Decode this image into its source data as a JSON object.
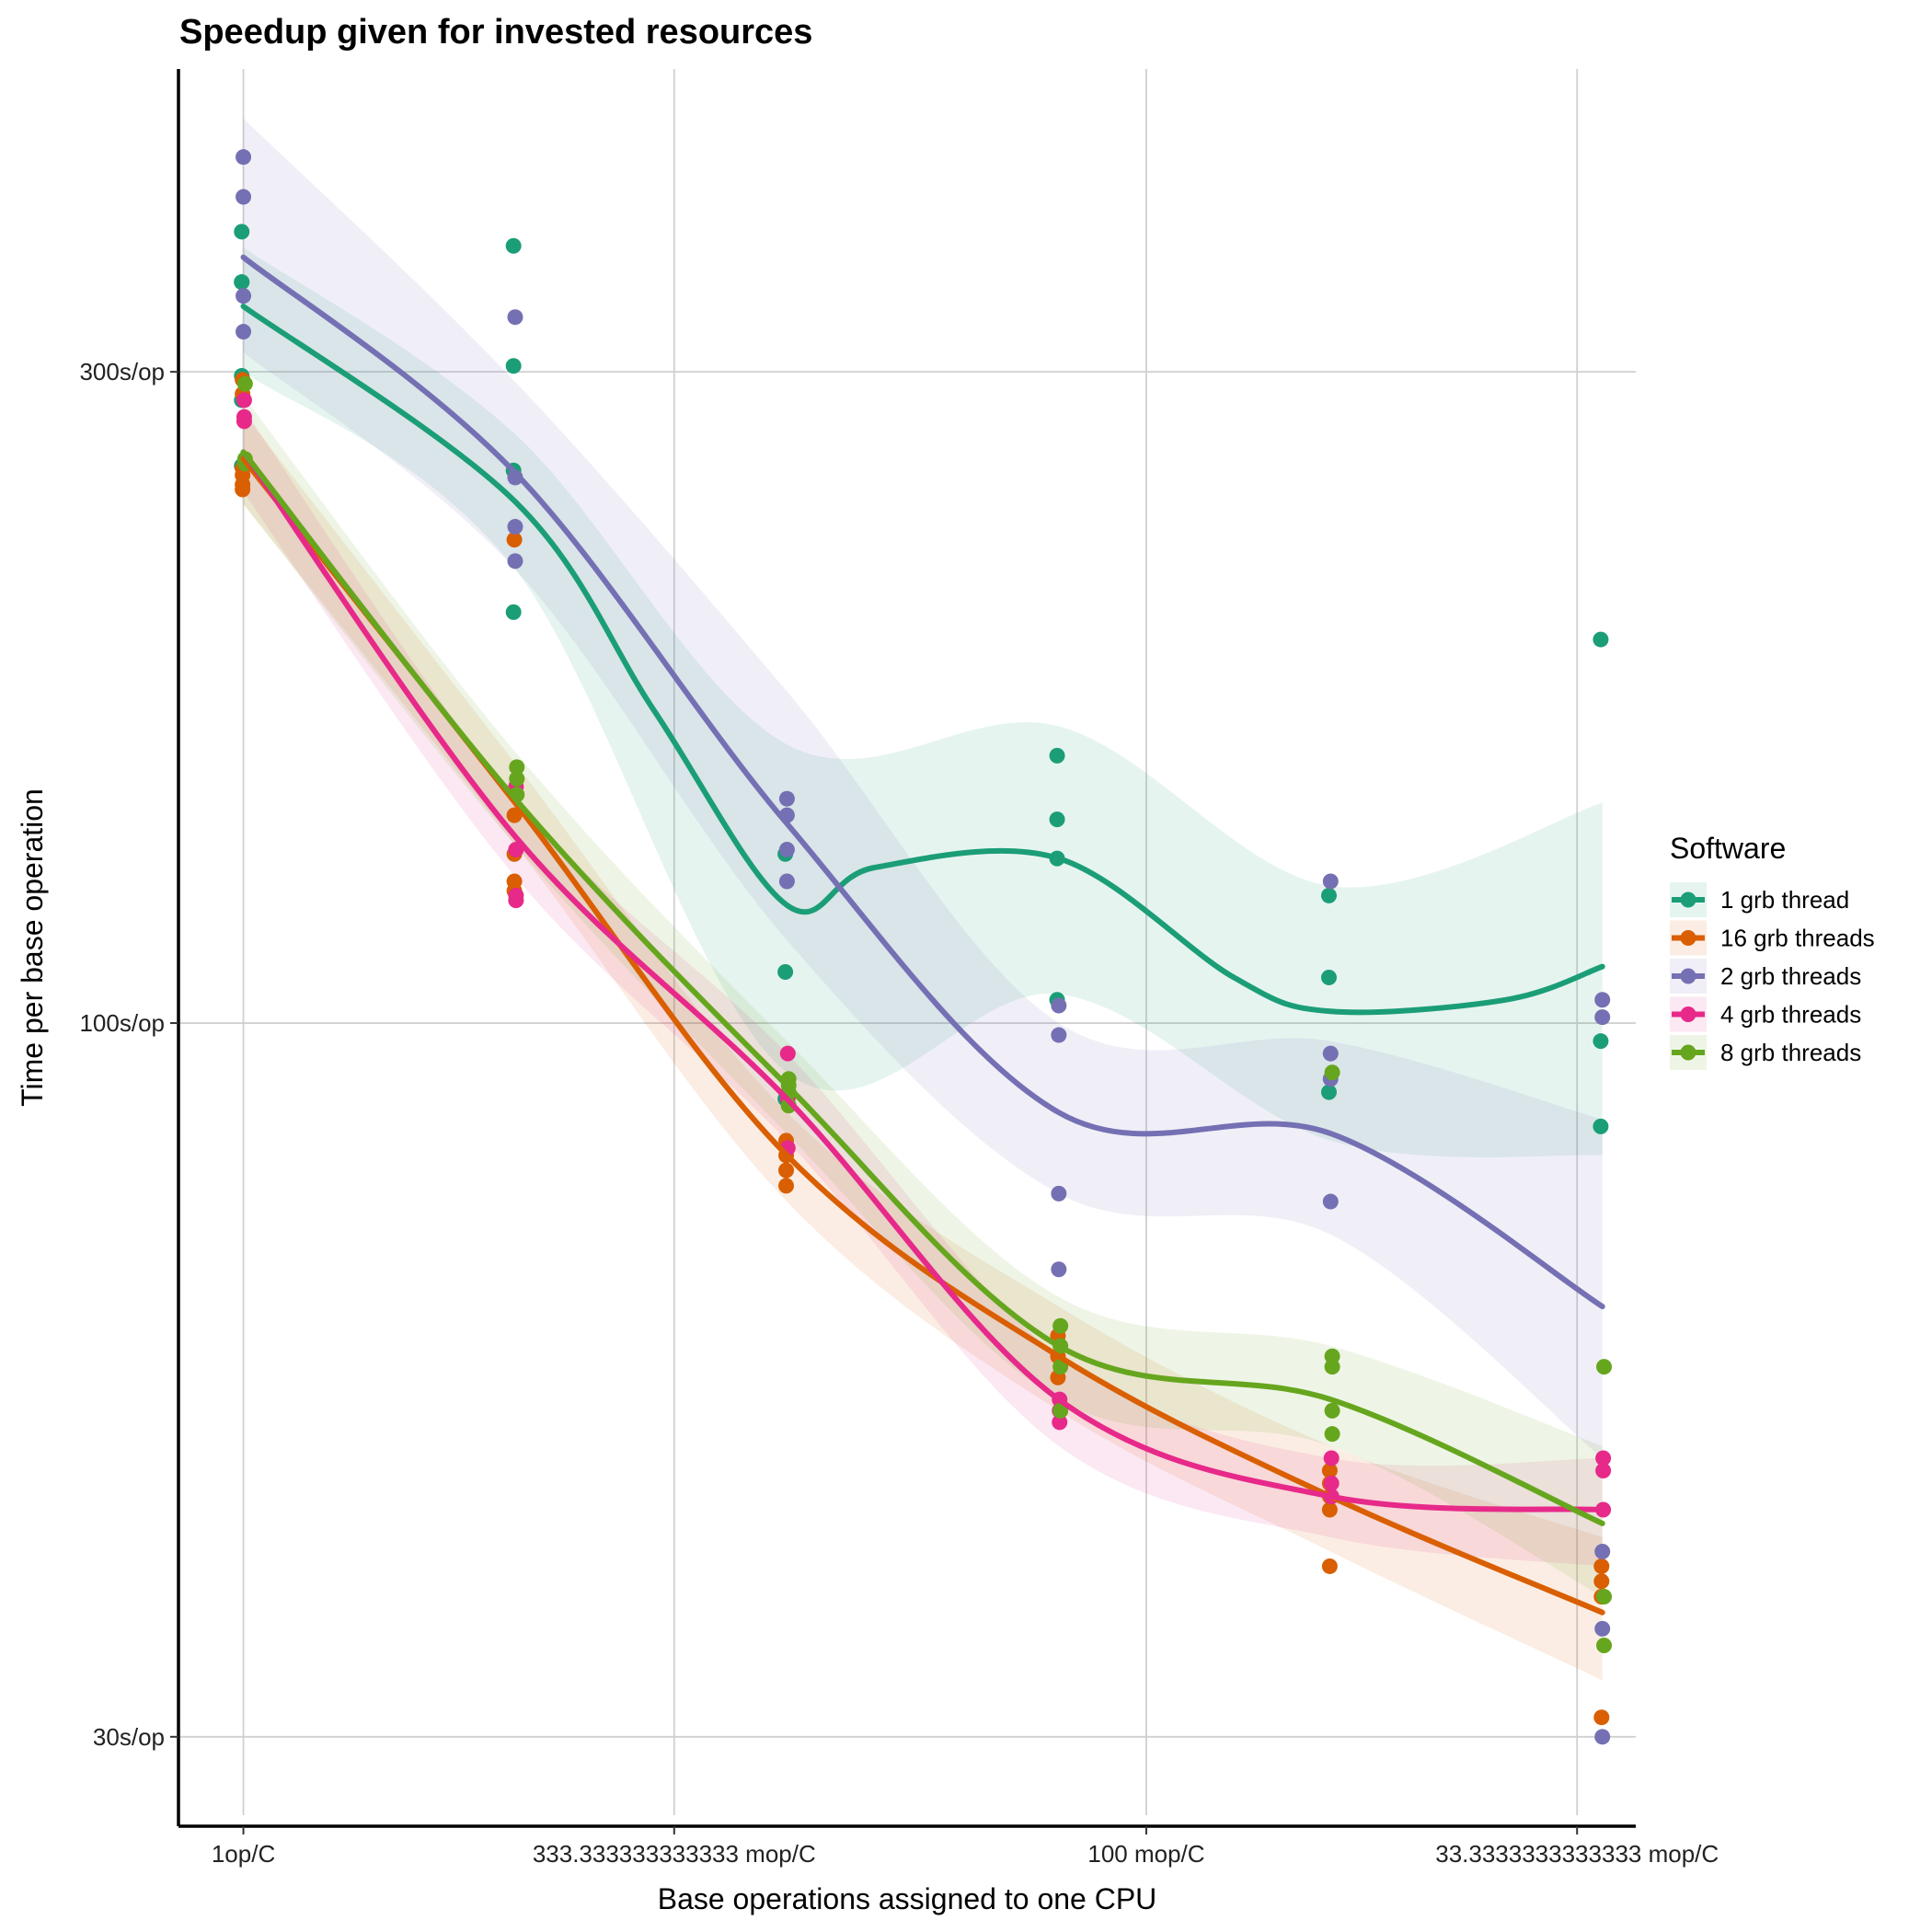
{
  "chart_data": {
    "type": "scatter",
    "title": "Speedup given for invested resources",
    "xlabel": "Base operations assigned to one CPU",
    "ylabel": "Time per base operation",
    "x_scale": "log",
    "y_scale": "log",
    "x_ticks": [
      {
        "value": 1,
        "label": "1op/C"
      },
      {
        "value": 0.333333333333333,
        "label": "333.333333333333 mop/C"
      },
      {
        "value": 0.1,
        "label": "100 mop/C"
      },
      {
        "value": 0.0333333333333333,
        "label": "33.3333333333333 mop/C"
      }
    ],
    "y_ticks": [
      {
        "value": 300,
        "label": "300s/op"
      },
      {
        "value": 100,
        "label": "100s/op"
      },
      {
        "value": 30,
        "label": "30s/op"
      }
    ],
    "xlim": [
      1.18,
      0.0287
    ],
    "ylim": [
      25.8,
      500
    ],
    "grid": true,
    "legend": {
      "title": "Software",
      "position": "right"
    },
    "x_values": [
      1,
      0.5,
      0.25,
      0.125,
      0.0625,
      0.03125
    ],
    "series": [
      {
        "name": "1 grb thread",
        "color": "#1b9e77",
        "points": [
          [
            1,
            380
          ],
          [
            1,
            349
          ],
          [
            1,
            349
          ],
          [
            1,
            298
          ],
          [
            1,
            286
          ],
          [
            1,
            256
          ],
          [
            0.5,
            371
          ],
          [
            0.5,
            303
          ],
          [
            0.5,
            254
          ],
          [
            0.5,
            200
          ],
          [
            0.25,
            133
          ],
          [
            0.25,
            109
          ],
          [
            0.25,
            88
          ],
          [
            0.125,
            157
          ],
          [
            0.125,
            141
          ],
          [
            0.125,
            132
          ],
          [
            0.125,
            104
          ],
          [
            0.0625,
            124
          ],
          [
            0.0625,
            108
          ],
          [
            0.0625,
            89
          ],
          [
            0.03125,
            191
          ],
          [
            0.03125,
            97
          ],
          [
            0.03125,
            84
          ]
        ],
        "fit": [
          [
            1,
            335
          ],
          [
            0.5,
            241
          ],
          [
            0.35,
            169
          ],
          [
            0.25,
            122
          ],
          [
            0.2,
            130
          ],
          [
            0.125,
            132
          ],
          [
            0.08,
            108
          ],
          [
            0.0625,
            102
          ],
          [
            0.04,
            104
          ],
          [
            0.03125,
            110
          ]
        ],
        "band": [
          [
            1,
            300,
            370
          ],
          [
            0.5,
            215,
            270
          ],
          [
            0.25,
            92,
            160
          ],
          [
            0.125,
            105,
            165
          ],
          [
            0.0625,
            82,
            126
          ],
          [
            0.03125,
            80,
            145
          ]
        ]
      },
      {
        "name": "16 grb threads",
        "color": "#d95f02",
        "points": [
          [
            1,
            296
          ],
          [
            1,
            289
          ],
          [
            1,
            255
          ],
          [
            1,
            252
          ],
          [
            1,
            248
          ],
          [
            1,
            246
          ],
          [
            0.5,
            226
          ],
          [
            0.5,
            142
          ],
          [
            0.5,
            133
          ],
          [
            0.5,
            127
          ],
          [
            0.5,
            125
          ],
          [
            0.25,
            82
          ],
          [
            0.25,
            80
          ],
          [
            0.25,
            78
          ],
          [
            0.25,
            76
          ],
          [
            0.125,
            59
          ],
          [
            0.125,
            57
          ],
          [
            0.125,
            55
          ],
          [
            0.0625,
            47
          ],
          [
            0.0625,
            46
          ],
          [
            0.0625,
            45
          ],
          [
            0.0625,
            44
          ],
          [
            0.0625,
            40
          ],
          [
            0.03125,
            40
          ],
          [
            0.03125,
            39
          ],
          [
            0.03125,
            38
          ],
          [
            0.03125,
            31
          ]
        ],
        "fit": [
          [
            1,
            259
          ],
          [
            0.5,
            145
          ],
          [
            0.25,
            80
          ],
          [
            0.125,
            57
          ],
          [
            0.0625,
            45
          ],
          [
            0.03125,
            37
          ]
        ],
        "band": [
          [
            1,
            240,
            280
          ],
          [
            0.5,
            135,
            155
          ],
          [
            0.25,
            74,
            86
          ],
          [
            0.125,
            52,
            62
          ],
          [
            0.0625,
            41,
            49
          ],
          [
            0.03125,
            33,
            42
          ]
        ]
      },
      {
        "name": "2 grb threads",
        "color": "#7570b3",
        "points": [
          [
            1,
            431
          ],
          [
            1,
            403
          ],
          [
            1,
            341
          ],
          [
            1,
            321
          ],
          [
            0.5,
            329
          ],
          [
            0.5,
            251
          ],
          [
            0.5,
            231
          ],
          [
            0.5,
            218
          ],
          [
            0.25,
            146
          ],
          [
            0.25,
            142
          ],
          [
            0.25,
            134
          ],
          [
            0.25,
            127
          ],
          [
            0.125,
            103
          ],
          [
            0.125,
            98
          ],
          [
            0.125,
            75
          ],
          [
            0.125,
            66
          ],
          [
            0.0625,
            127
          ],
          [
            0.0625,
            95
          ],
          [
            0.0625,
            91
          ],
          [
            0.0625,
            74
          ],
          [
            0.03125,
            104
          ],
          [
            0.03125,
            101
          ],
          [
            0.03125,
            41
          ],
          [
            0.03125,
            36
          ],
          [
            0.03125,
            30
          ]
        ],
        "fit": [
          [
            1,
            364
          ],
          [
            0.5,
            253
          ],
          [
            0.25,
            140
          ],
          [
            0.125,
            86
          ],
          [
            0.0625,
            83
          ],
          [
            0.03125,
            62
          ]
        ],
        "band": [
          [
            1,
            310,
            460
          ],
          [
            0.5,
            215,
            295
          ],
          [
            0.25,
            115,
            175
          ],
          [
            0.125,
            75,
            100
          ],
          [
            0.0625,
            70,
            97
          ],
          [
            0.03125,
            48,
            85
          ]
        ]
      },
      {
        "name": "4 grb threads",
        "color": "#e7298a",
        "points": [
          [
            1,
            286
          ],
          [
            1,
            278
          ],
          [
            1,
            276
          ],
          [
            0.5,
            149
          ],
          [
            0.5,
            134
          ],
          [
            0.5,
            124
          ],
          [
            0.5,
            123
          ],
          [
            0.25,
            95
          ],
          [
            0.25,
            88
          ],
          [
            0.25,
            81
          ],
          [
            0.125,
            53
          ],
          [
            0.125,
            52
          ],
          [
            0.125,
            51
          ],
          [
            0.0625,
            48
          ],
          [
            0.0625,
            46
          ],
          [
            0.0625,
            45
          ],
          [
            0.0625,
            45
          ],
          [
            0.03125,
            48
          ],
          [
            0.03125,
            47
          ],
          [
            0.03125,
            44
          ]
        ],
        "fit": [
          [
            1,
            262
          ],
          [
            0.5,
            137
          ],
          [
            0.25,
            88
          ],
          [
            0.125,
            53
          ],
          [
            0.0625,
            45
          ],
          [
            0.03125,
            44
          ]
        ],
        "band": [
          [
            1,
            245,
            282
          ],
          [
            0.5,
            128,
            146
          ],
          [
            0.25,
            82,
            95
          ],
          [
            0.125,
            49,
            57
          ],
          [
            0.0625,
            42,
            48
          ],
          [
            0.03125,
            40,
            48
          ]
        ]
      },
      {
        "name": "8 grb threads",
        "color": "#66a61e",
        "points": [
          [
            1,
            294
          ],
          [
            1,
            259
          ],
          [
            1,
            257
          ],
          [
            0.5,
            154
          ],
          [
            0.5,
            151
          ],
          [
            0.5,
            147
          ],
          [
            0.25,
            91
          ],
          [
            0.25,
            90
          ],
          [
            0.25,
            89
          ],
          [
            0.25,
            87
          ],
          [
            0.125,
            60
          ],
          [
            0.125,
            58
          ],
          [
            0.125,
            56
          ],
          [
            0.125,
            52
          ],
          [
            0.0625,
            92
          ],
          [
            0.0625,
            57
          ],
          [
            0.0625,
            56
          ],
          [
            0.0625,
            52
          ],
          [
            0.0625,
            50
          ],
          [
            0.03125,
            56
          ],
          [
            0.03125,
            38
          ],
          [
            0.03125,
            35
          ]
        ],
        "fit": [
          [
            1,
            262
          ],
          [
            0.5,
            146
          ],
          [
            0.25,
            90
          ],
          [
            0.125,
            58
          ],
          [
            0.0625,
            53
          ],
          [
            0.03125,
            43
          ]
        ],
        "band": [
          [
            1,
            240,
            288
          ],
          [
            0.5,
            135,
            158
          ],
          [
            0.25,
            83,
            97
          ],
          [
            0.125,
            53,
            63
          ],
          [
            0.0625,
            49,
            58
          ],
          [
            0.03125,
            38,
            49
          ]
        ]
      }
    ]
  }
}
